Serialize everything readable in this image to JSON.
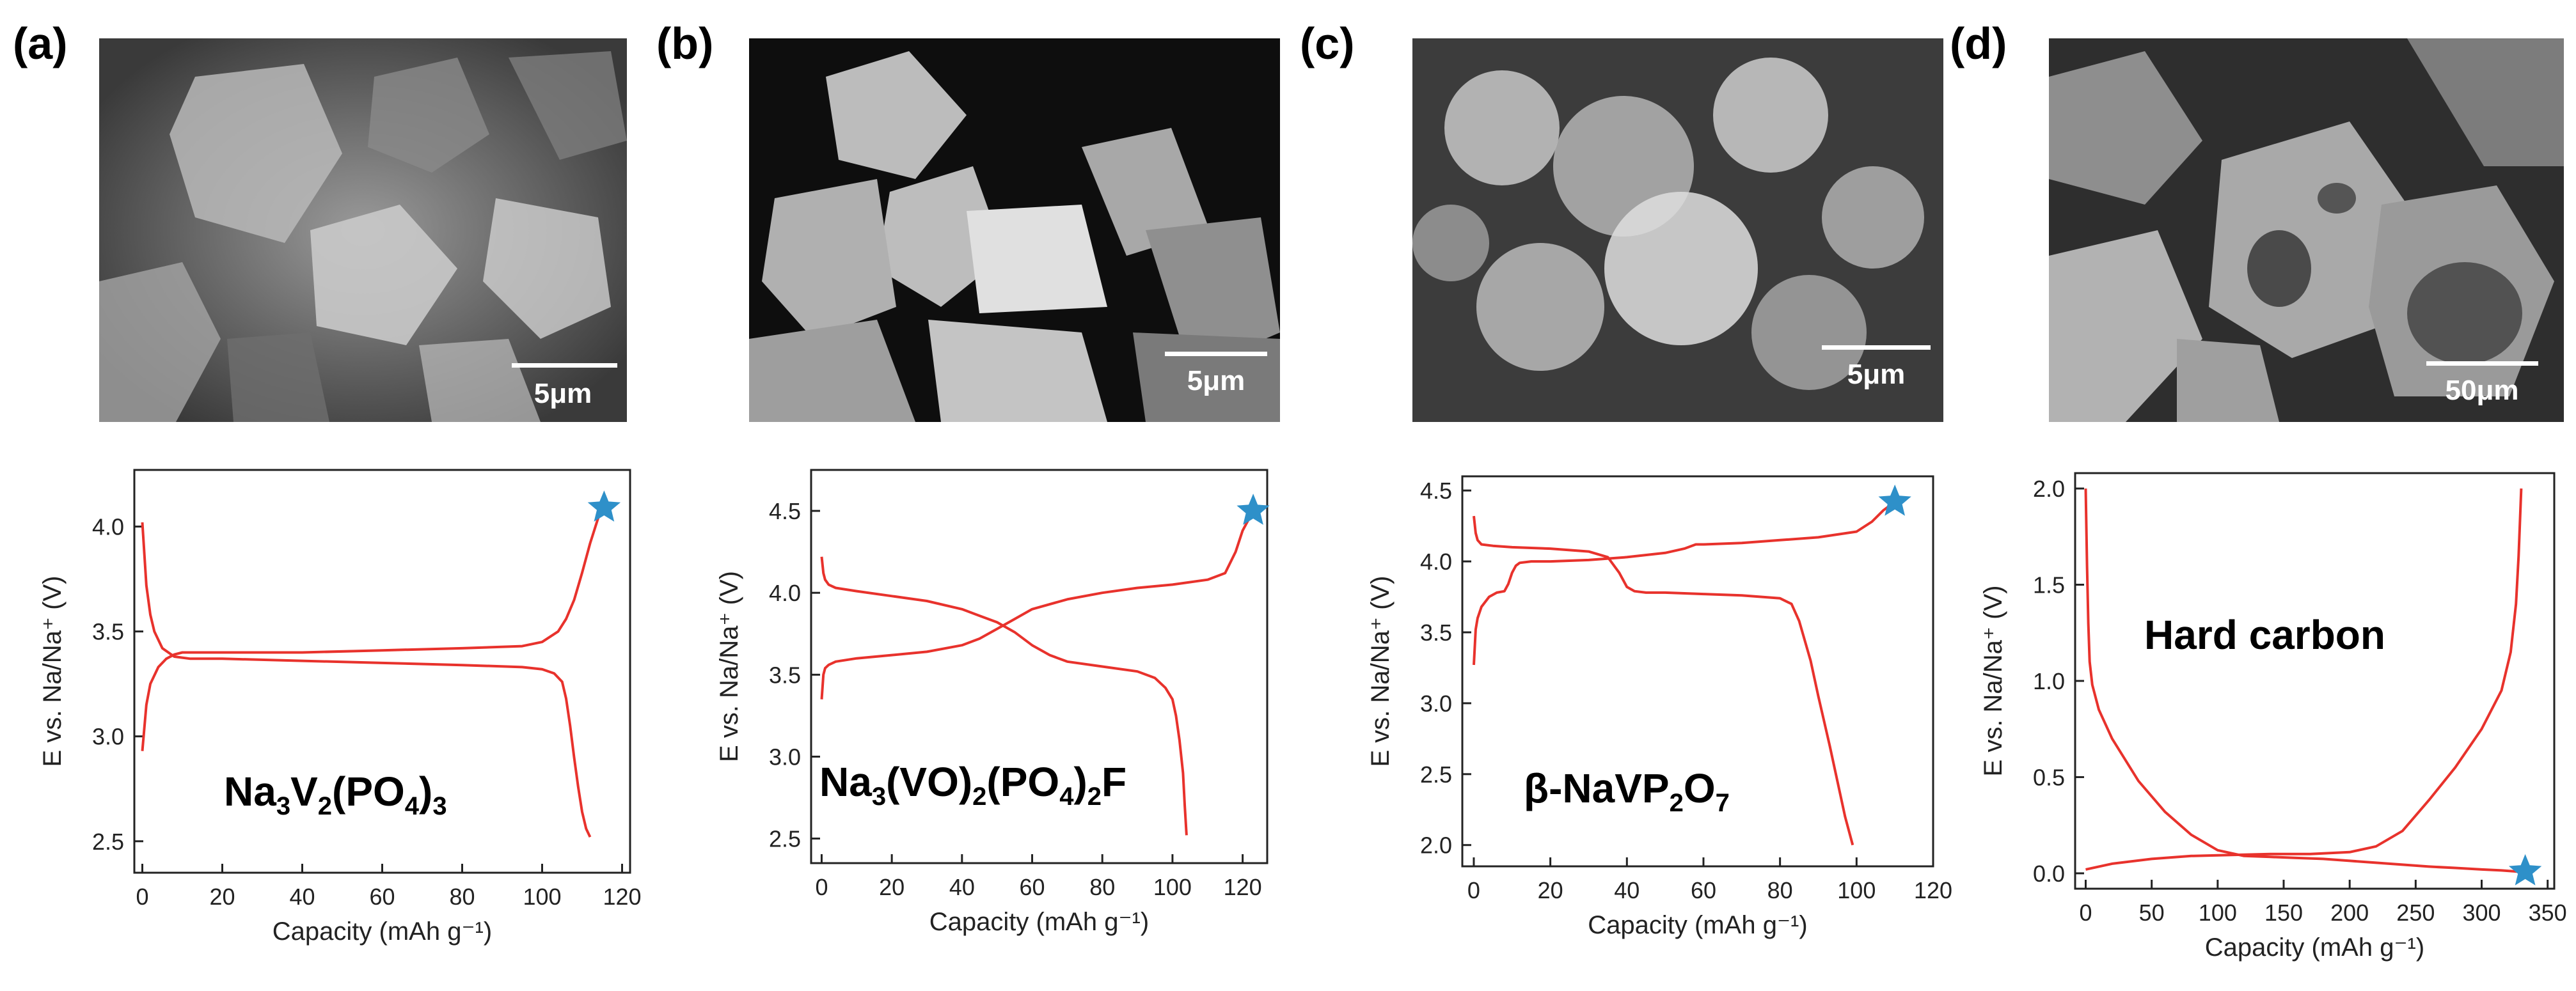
{
  "panels": [
    {
      "label": "(a)",
      "scalebar": "5μm",
      "image_kind": "sem-micrograph"
    },
    {
      "label": "(b)",
      "scalebar": "5μm",
      "image_kind": "sem-micrograph"
    },
    {
      "label": "(c)",
      "scalebar": "5μm",
      "image_kind": "sem-micrograph"
    },
    {
      "label": "(d)",
      "scalebar": "50μm",
      "image_kind": "sem-micrograph"
    }
  ],
  "colors": {
    "curve": "#e8322c",
    "star": "#2e90c9",
    "axis": "#222222"
  },
  "chart_data": [
    {
      "type": "line",
      "xlabel": "Capacity (mAh g⁻¹)",
      "ylabel": "E vs. Na/Na⁺ (V)",
      "xlim": [
        -2,
        122
      ],
      "ylim": [
        2.35,
        4.27
      ],
      "xticks": [
        0,
        20,
        40,
        60,
        80,
        100,
        120
      ],
      "yticks": [
        2.5,
        3.0,
        3.5,
        4.0
      ],
      "ytick_labels": [
        "2.5",
        "3.0",
        "3.5",
        "4.0"
      ],
      "annotation": {
        "main": "Na",
        "parts": [
          [
            "3",
            "sub"
          ],
          [
            "V",
            ""
          ],
          [
            "2",
            "sub"
          ],
          [
            "(PO",
            ""
          ],
          [
            "4",
            "sub"
          ],
          [
            ")",
            ""
          ],
          [
            "3",
            "sub"
          ]
        ]
      },
      "marker": {
        "symbol": "star",
        "x": 115.5,
        "y": 4.09
      },
      "series": [
        {
          "x": [
            0,
            1,
            2,
            4,
            6,
            8,
            10,
            20,
            40,
            60,
            80,
            95,
            100,
            104,
            106,
            108,
            110,
            112,
            114,
            115.5
          ],
          "y": [
            2.93,
            3.15,
            3.25,
            3.33,
            3.37,
            3.39,
            3.4,
            3.4,
            3.4,
            3.41,
            3.42,
            3.43,
            3.45,
            3.5,
            3.56,
            3.65,
            3.78,
            3.92,
            4.04,
            4.09
          ]
        },
        {
          "x": [
            0,
            1,
            2,
            3,
            5,
            8,
            12,
            20,
            40,
            60,
            80,
            95,
            100,
            103,
            105,
            106,
            107,
            108,
            109,
            110,
            111,
            112
          ],
          "y": [
            4.02,
            3.72,
            3.58,
            3.5,
            3.42,
            3.38,
            3.37,
            3.37,
            3.36,
            3.35,
            3.34,
            3.33,
            3.32,
            3.3,
            3.26,
            3.18,
            3.05,
            2.9,
            2.76,
            2.64,
            2.56,
            2.52
          ]
        }
      ]
    },
    {
      "type": "line",
      "xlabel": "Capacity (mAh g⁻¹)",
      "ylabel": "E vs. Na/Na⁺ (V)",
      "xlim": [
        -3,
        127
      ],
      "ylim": [
        2.35,
        4.75
      ],
      "xticks": [
        0,
        20,
        40,
        60,
        80,
        100,
        120
      ],
      "yticks": [
        2.5,
        3.0,
        3.5,
        4.0,
        4.5
      ],
      "ytick_labels": [
        "2.5",
        "3.0",
        "3.5",
        "4.0",
        "4.5"
      ],
      "annotation": {
        "main": "Na",
        "parts": [
          [
            "3",
            "sub"
          ],
          [
            "(VO)",
            ""
          ],
          [
            "2",
            "sub"
          ],
          [
            "(PO",
            ""
          ],
          [
            "4",
            "sub"
          ],
          [
            ")",
            ""
          ],
          [
            "2",
            "sub"
          ],
          [
            "F",
            ""
          ]
        ]
      },
      "marker": {
        "symbol": "star",
        "x": 123,
        "y": 4.5
      },
      "series": [
        {
          "x": [
            0,
            0.5,
            1,
            2,
            4,
            10,
            20,
            30,
            40,
            45,
            50,
            55,
            60,
            70,
            80,
            90,
            100,
            110,
            115,
            118,
            120,
            123
          ],
          "y": [
            3.35,
            3.5,
            3.54,
            3.56,
            3.58,
            3.6,
            3.62,
            3.64,
            3.68,
            3.72,
            3.78,
            3.84,
            3.9,
            3.96,
            4.0,
            4.03,
            4.05,
            4.08,
            4.12,
            4.25,
            4.38,
            4.5
          ]
        },
        {
          "x": [
            0,
            0.5,
            1,
            2,
            4,
            10,
            20,
            30,
            40,
            45,
            50,
            55,
            60,
            65,
            70,
            80,
            90,
            95,
            98,
            100,
            101,
            102,
            103,
            103.5,
            104
          ],
          "y": [
            4.22,
            4.12,
            4.08,
            4.05,
            4.03,
            4.01,
            3.98,
            3.95,
            3.9,
            3.86,
            3.82,
            3.76,
            3.68,
            3.62,
            3.58,
            3.55,
            3.52,
            3.48,
            3.42,
            3.35,
            3.25,
            3.1,
            2.9,
            2.7,
            2.52
          ]
        }
      ]
    },
    {
      "type": "line",
      "xlabel": "Capacity (mAh g⁻¹)",
      "ylabel": "E vs. Na/Na⁺ (V)",
      "xlim": [
        -3,
        120
      ],
      "ylim": [
        1.85,
        4.6
      ],
      "xticks": [
        0,
        20,
        40,
        60,
        80,
        100,
        120
      ],
      "yticks": [
        2.0,
        2.5,
        3.0,
        3.5,
        4.0,
        4.5
      ],
      "ytick_labels": [
        "2.0",
        "2.5",
        "3.0",
        "3.5",
        "4.0",
        "4.5"
      ],
      "annotation": {
        "main": "β-NaVP",
        "parts": [
          [
            "2",
            "sub"
          ],
          [
            "O",
            ""
          ],
          [
            "7",
            "sub"
          ]
        ]
      },
      "marker": {
        "symbol": "star",
        "x": 110,
        "y": 4.42
      },
      "series": [
        {
          "x": [
            0,
            0.5,
            1,
            2,
            4,
            6,
            8,
            9,
            10,
            11,
            12,
            15,
            20,
            30,
            40,
            50,
            55,
            58,
            60,
            70,
            80,
            90,
            100,
            104,
            107,
            110
          ],
          "y": [
            3.27,
            3.52,
            3.6,
            3.68,
            3.75,
            3.78,
            3.79,
            3.84,
            3.92,
            3.97,
            3.99,
            4.0,
            4.0,
            4.01,
            4.03,
            4.06,
            4.09,
            4.12,
            4.12,
            4.13,
            4.15,
            4.17,
            4.21,
            4.28,
            4.36,
            4.42
          ]
        },
        {
          "x": [
            0,
            0.5,
            1,
            2,
            5,
            10,
            20,
            30,
            35,
            38,
            40,
            42,
            45,
            50,
            60,
            70,
            80,
            83,
            85,
            88,
            90,
            93,
            95,
            97,
            99
          ],
          "y": [
            4.32,
            4.2,
            4.15,
            4.12,
            4.11,
            4.1,
            4.09,
            4.07,
            4.03,
            3.92,
            3.82,
            3.79,
            3.78,
            3.78,
            3.77,
            3.76,
            3.74,
            3.7,
            3.58,
            3.3,
            3.05,
            2.7,
            2.45,
            2.2,
            2.0
          ]
        }
      ]
    },
    {
      "type": "line",
      "xlabel": "Capacity (mAh g⁻¹)",
      "ylabel": "E vs. Na/Na⁺ (V)",
      "xlim": [
        -8,
        355
      ],
      "ylim": [
        -0.08,
        2.08
      ],
      "xticks": [
        0,
        50,
        100,
        150,
        200,
        250,
        300,
        350
      ],
      "yticks": [
        0.0,
        0.5,
        1.0,
        1.5,
        2.0
      ],
      "ytick_labels": [
        "0.0",
        "0.5",
        "1.0",
        "1.5",
        "2.0"
      ],
      "annotation": {
        "main": "Hard carbon",
        "parts": []
      },
      "marker": {
        "symbol": "star",
        "x": 333,
        "y": 0.01
      },
      "series": [
        {
          "x": [
            0,
            1,
            2,
            3,
            5,
            10,
            20,
            40,
            60,
            80,
            100,
            120,
            140,
            160,
            180,
            200,
            220,
            240,
            260,
            280,
            300,
            315,
            325,
            328,
            330,
            331
          ],
          "y": [
            2.0,
            1.6,
            1.3,
            1.1,
            0.98,
            0.85,
            0.7,
            0.48,
            0.32,
            0.2,
            0.12,
            0.09,
            0.085,
            0.08,
            0.075,
            0.065,
            0.055,
            0.045,
            0.035,
            0.028,
            0.02,
            0.015,
            0.01,
            0.008,
            0.006,
            0.005
          ]
        },
        {
          "x": [
            0,
            20,
            50,
            80,
            110,
            140,
            170,
            200,
            220,
            240,
            260,
            280,
            300,
            315,
            322,
            326,
            328,
            330
          ],
          "y": [
            0.02,
            0.05,
            0.075,
            0.09,
            0.095,
            0.1,
            0.1,
            0.11,
            0.14,
            0.22,
            0.38,
            0.55,
            0.75,
            0.95,
            1.15,
            1.4,
            1.65,
            2.0
          ]
        }
      ]
    }
  ]
}
